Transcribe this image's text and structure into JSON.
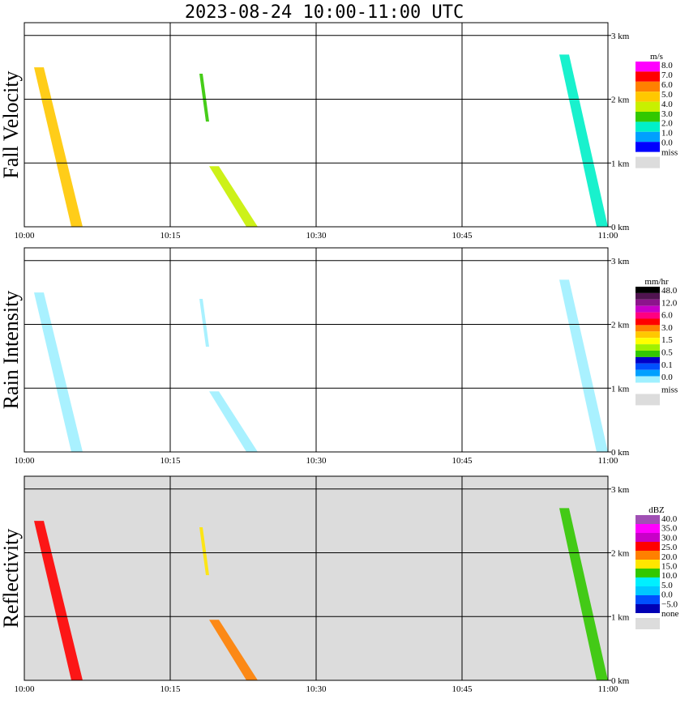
{
  "title": "2023-08-24   10:00-11:00 UTC",
  "chart_data": [
    {
      "type": "heatmap",
      "name": "Fall Velocity",
      "xlabel": "",
      "ylabel": "Fall Velocity",
      "x_ticks": [
        "10:00",
        "10:15",
        "10:30",
        "10:45",
        "11:00"
      ],
      "y_ticks": [
        "0 km",
        "1 km",
        "2 km",
        "3 km"
      ],
      "xlim": [
        "10:00",
        "11:00"
      ],
      "ylim_km": [
        0,
        3.2
      ],
      "grid": true,
      "colorbar": {
        "unit": "m/s",
        "labels": [
          "8.0",
          "7.0",
          "6.0",
          "5.0",
          "4.0",
          "3.0",
          "2.0",
          "1.0",
          "0.0"
        ],
        "colors": [
          "#ff00ff",
          "#ff0000",
          "#ff8000",
          "#ffc800",
          "#c8f000",
          "#32c800",
          "#00f0c8",
          "#00a0ff",
          "#0000ff"
        ],
        "miss_label": "miss",
        "miss_color": "#dcdcdc"
      },
      "background": "#ffffff",
      "echoes": [
        {
          "start": "10:01",
          "end": "10:06",
          "top_km": 2.5,
          "type": "slant"
        },
        {
          "start": "10:19",
          "end": "10:24",
          "top_km": 0.95,
          "type": "slant"
        },
        {
          "start": "10:18",
          "end": "10:19",
          "top_km": 2.4,
          "type": "streak"
        },
        {
          "start": "10:55",
          "end": "11:00",
          "top_km": 2.7,
          "type": "slant"
        }
      ]
    },
    {
      "type": "heatmap",
      "name": "Rain Intensity",
      "xlabel": "",
      "ylabel": "Rain Intensity",
      "x_ticks": [
        "10:00",
        "10:15",
        "10:30",
        "10:45",
        "11:00"
      ],
      "y_ticks": [
        "0 km",
        "1 km",
        "2 km",
        "3 km"
      ],
      "xlim": [
        "10:00",
        "11:00"
      ],
      "ylim_km": [
        0,
        3.2
      ],
      "grid": true,
      "colorbar": {
        "unit": "mm/hr",
        "labels": [
          "48.0",
          "12.0",
          "6.0",
          "3.0",
          "1.5",
          "0.5",
          "0.1",
          "0.0"
        ],
        "colors": [
          "#000000",
          "#501450",
          "#8c148c",
          "#c800c8",
          "#ff0080",
          "#ff0000",
          "#ff8000",
          "#ffc800",
          "#ffff00",
          "#a0f000",
          "#32c800",
          "#0000c8",
          "#0050ff",
          "#00a0ff",
          "#a0f0ff",
          "#ffffff"
        ],
        "miss_label": "miss",
        "miss_color": "#dcdcdc"
      },
      "background": "#ffffff"
    },
    {
      "type": "heatmap",
      "name": "Reflectivity",
      "xlabel": "",
      "ylabel": "Reflectivity",
      "x_ticks": [
        "10:00",
        "10:15",
        "10:30",
        "10:45",
        "11:00"
      ],
      "y_ticks": [
        "0 km",
        "1 km",
        "2 km",
        "3 km"
      ],
      "xlim": [
        "10:00",
        "11:00"
      ],
      "ylim_km": [
        0,
        3.2
      ],
      "grid": true,
      "colorbar": {
        "unit": "dBZ",
        "labels": [
          "40.0",
          "35.0",
          "30.0",
          "25.0",
          "20.0",
          "15.0",
          "10.0",
          "5.0",
          "0.0",
          "−5.0"
        ],
        "colors": [
          "#a050b4",
          "#ff00ff",
          "#c800c8",
          "#ff0000",
          "#ff8000",
          "#ffe600",
          "#32c800",
          "#00f0ff",
          "#00c8ff",
          "#0050ff",
          "#0000b4"
        ],
        "miss_label": "none",
        "miss_color": "#dcdcdc"
      },
      "background": "#dcdcdc"
    }
  ]
}
